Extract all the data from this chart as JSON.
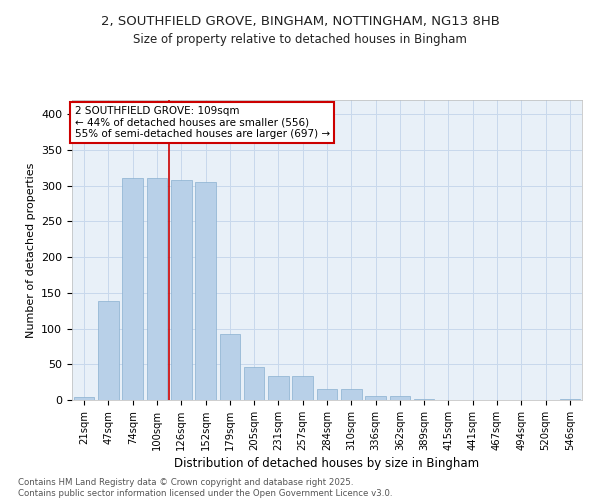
{
  "title_line1": "2, SOUTHFIELD GROVE, BINGHAM, NOTTINGHAM, NG13 8HB",
  "title_line2": "Size of property relative to detached houses in Bingham",
  "xlabel": "Distribution of detached houses by size in Bingham",
  "ylabel": "Number of detached properties",
  "categories": [
    "21sqm",
    "47sqm",
    "74sqm",
    "100sqm",
    "126sqm",
    "152sqm",
    "179sqm",
    "205sqm",
    "231sqm",
    "257sqm",
    "284sqm",
    "310sqm",
    "336sqm",
    "362sqm",
    "389sqm",
    "415sqm",
    "441sqm",
    "467sqm",
    "494sqm",
    "520sqm",
    "546sqm"
  ],
  "values": [
    4,
    138,
    311,
    311,
    308,
    305,
    93,
    46,
    34,
    34,
    16,
    15,
    6,
    6,
    1,
    0,
    0,
    0,
    0,
    0,
    2
  ],
  "bar_color": "#b8d0e8",
  "bar_edge_color": "#8ab0d0",
  "grid_color": "#c8d8ec",
  "bg_color": "#e8f0f8",
  "vline_x": 3.5,
  "vline_color": "#cc0000",
  "annotation_text": "2 SOUTHFIELD GROVE: 109sqm\n← 44% of detached houses are smaller (556)\n55% of semi-detached houses are larger (697) →",
  "annotation_box_color": "#ffffff",
  "annotation_box_edge": "#cc0000",
  "footer_line1": "Contains HM Land Registry data © Crown copyright and database right 2025.",
  "footer_line2": "Contains public sector information licensed under the Open Government Licence v3.0.",
  "ylim": [
    0,
    420
  ],
  "yticks": [
    0,
    50,
    100,
    150,
    200,
    250,
    300,
    350,
    400
  ]
}
